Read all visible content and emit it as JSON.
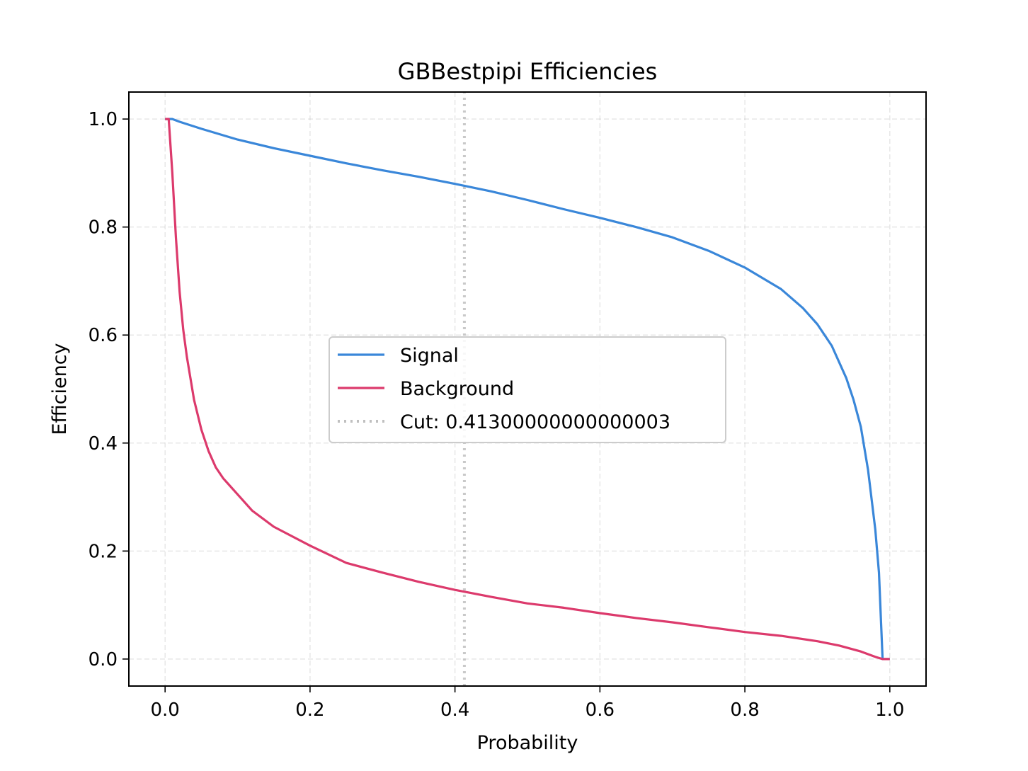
{
  "chart_data": {
    "type": "line",
    "title": "GBBestpipi Efficiencies",
    "xlabel": "Probability",
    "ylabel": "Efficiency",
    "xlim": [
      -0.05,
      1.05
    ],
    "ylim": [
      -0.05,
      1.05
    ],
    "xticks": [
      "0.0",
      "0.2",
      "0.4",
      "0.6",
      "0.8",
      "1.0"
    ],
    "yticks": [
      "0.0",
      "0.2",
      "0.4",
      "0.6",
      "0.8",
      "1.0"
    ],
    "grid": true,
    "legend_position": "center",
    "series": [
      {
        "name": "Signal",
        "color": "#3a87d9",
        "x": [
          0.0,
          0.01,
          0.02,
          0.05,
          0.1,
          0.15,
          0.2,
          0.25,
          0.3,
          0.35,
          0.4,
          0.45,
          0.5,
          0.55,
          0.6,
          0.65,
          0.7,
          0.75,
          0.8,
          0.85,
          0.88,
          0.9,
          0.92,
          0.94,
          0.95,
          0.96,
          0.97,
          0.98,
          0.985,
          0.99,
          0.995,
          1.0
        ],
        "y": [
          1.0,
          1.0,
          0.995,
          0.982,
          0.962,
          0.946,
          0.932,
          0.918,
          0.905,
          0.893,
          0.88,
          0.866,
          0.85,
          0.833,
          0.817,
          0.8,
          0.781,
          0.756,
          0.725,
          0.685,
          0.65,
          0.62,
          0.58,
          0.52,
          0.48,
          0.43,
          0.35,
          0.24,
          0.16,
          0.0,
          0.0,
          0.0
        ]
      },
      {
        "name": "Background",
        "color": "#dc3a6c",
        "x": [
          0.0,
          0.005,
          0.01,
          0.015,
          0.02,
          0.025,
          0.03,
          0.04,
          0.05,
          0.06,
          0.07,
          0.08,
          0.1,
          0.12,
          0.15,
          0.2,
          0.25,
          0.3,
          0.35,
          0.4,
          0.45,
          0.5,
          0.55,
          0.6,
          0.65,
          0.7,
          0.75,
          0.8,
          0.85,
          0.9,
          0.93,
          0.96,
          0.98,
          0.99,
          1.0
        ],
        "y": [
          1.0,
          1.0,
          0.9,
          0.78,
          0.68,
          0.61,
          0.56,
          0.48,
          0.425,
          0.385,
          0.355,
          0.335,
          0.305,
          0.275,
          0.245,
          0.21,
          0.178,
          0.16,
          0.143,
          0.128,
          0.115,
          0.103,
          0.095,
          0.085,
          0.076,
          0.068,
          0.059,
          0.05,
          0.043,
          0.033,
          0.025,
          0.014,
          0.004,
          0.0,
          0.0
        ]
      },
      {
        "name": "Cut: 0.41300000000000003",
        "color": "#c0c0c0",
        "style": "dotted",
        "x": [
          0.413,
          0.413
        ],
        "y": [
          -0.05,
          1.05
        ]
      }
    ]
  }
}
